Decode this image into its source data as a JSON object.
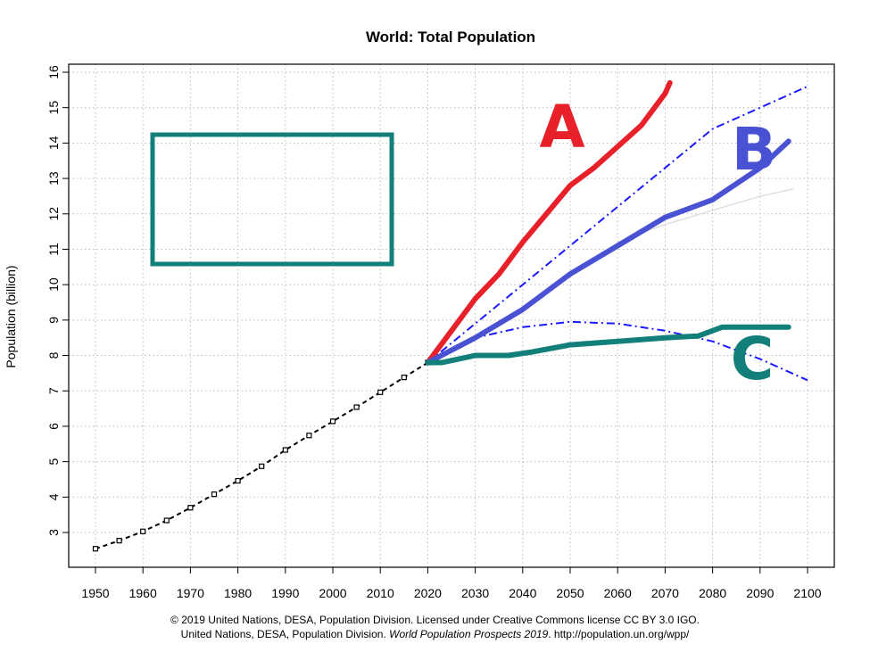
{
  "chart_data": {
    "type": "line",
    "title": "World: Total Population",
    "xlabel": "",
    "ylabel": "Population (billion)",
    "xlim": [
      1950,
      2100
    ],
    "ylim": [
      2.5,
      16
    ],
    "x_ticks": [
      1950,
      1960,
      1970,
      1980,
      1990,
      2000,
      2010,
      2020,
      2030,
      2040,
      2050,
      2060,
      2070,
      2080,
      2090,
      2100
    ],
    "y_ticks": [
      3,
      4,
      5,
      6,
      7,
      8,
      9,
      10,
      11,
      12,
      13,
      14,
      15,
      16
    ],
    "grid": true,
    "series": [
      {
        "name": "",
        "style": "dashed-points",
        "color": "#000000",
        "x": [
          1950,
          1955,
          1960,
          1965,
          1970,
          1975,
          1980,
          1985,
          1990,
          1995,
          2000,
          2005,
          2010,
          2015,
          2020
        ],
        "y": [
          2.54,
          2.77,
          3.03,
          3.34,
          3.7,
          4.08,
          4.46,
          4.87,
          5.33,
          5.74,
          6.14,
          6.54,
          6.96,
          7.38,
          7.8
        ]
      },
      {
        "name": "",
        "style": "dashdot",
        "color": "#1a1aff",
        "x": [
          2020,
          2030,
          2040,
          2050,
          2060,
          2070,
          2080,
          2090,
          2100
        ],
        "y": [
          7.8,
          8.9,
          10.0,
          11.1,
          12.2,
          13.3,
          14.4,
          15.0,
          15.6
        ]
      },
      {
        "name": "",
        "style": "dashdot",
        "color": "#1a1aff",
        "x": [
          2020,
          2030,
          2040,
          2050,
          2060,
          2070,
          2080,
          2090,
          2100
        ],
        "y": [
          7.8,
          8.5,
          8.8,
          8.95,
          8.9,
          8.7,
          8.4,
          7.9,
          7.3
        ]
      },
      {
        "name": "",
        "style": "solid",
        "color": "#d9d9d9",
        "x": [
          2060,
          2070,
          2080,
          2090,
          2097
        ],
        "y": [
          11.2,
          11.7,
          12.1,
          12.5,
          12.7
        ]
      }
    ],
    "annotations": [
      {
        "label": "A",
        "color": "#e8202a",
        "x": [
          2020,
          2025,
          2030,
          2035,
          2040,
          2045,
          2050,
          2055,
          2060,
          2065,
          2070,
          2071
        ],
        "y": [
          7.8,
          8.7,
          9.6,
          10.3,
          11.2,
          12.0,
          12.8,
          13.3,
          13.9,
          14.5,
          15.4,
          15.7
        ]
      },
      {
        "label": "B",
        "color": "#4a52d4",
        "x": [
          2020,
          2030,
          2040,
          2050,
          2060,
          2070,
          2080,
          2090,
          2096
        ],
        "y": [
          7.8,
          8.5,
          9.3,
          10.3,
          11.1,
          11.9,
          12.4,
          13.3,
          14.05
        ]
      },
      {
        "label": "C",
        "color": "#137f7a",
        "x": [
          2020,
          2023,
          2030,
          2037,
          2042,
          2050,
          2060,
          2070,
          2077,
          2082,
          2090,
          2096
        ],
        "y": [
          7.8,
          7.8,
          8.0,
          8.0,
          8.1,
          8.3,
          8.4,
          8.5,
          8.55,
          8.8,
          8.8,
          8.8
        ]
      }
    ],
    "caption_line1": "© 2019 United Nations, DESA, Population Division. Licensed under Creative Commons license CC BY 3.0 IGO.",
    "caption_line2_pre": "United Nations, DESA, Population Division.",
    "caption_line2_italic": "World Population Prospects 2019",
    "caption_line2_post": ". http://population.un.org/wpp/"
  }
}
